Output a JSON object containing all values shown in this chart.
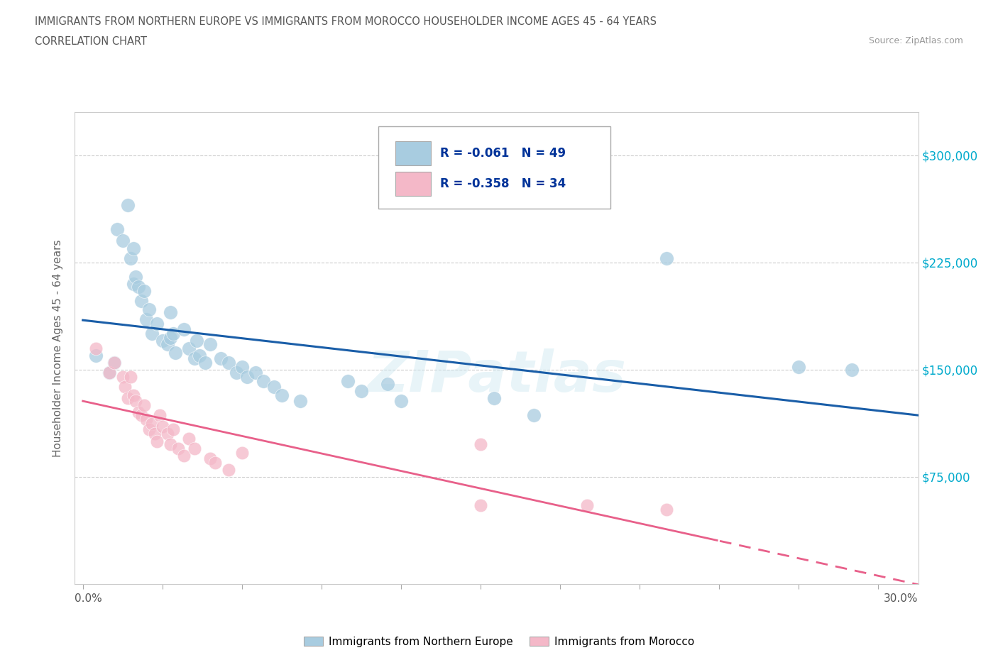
{
  "title_line1": "IMMIGRANTS FROM NORTHERN EUROPE VS IMMIGRANTS FROM MOROCCO HOUSEHOLDER INCOME AGES 45 - 64 YEARS",
  "title_line2": "CORRELATION CHART",
  "source_text": "Source: ZipAtlas.com",
  "xlabel_bottom_left": "0.0%",
  "xlabel_bottom_right": "30.0%",
  "ylabel": "Householder Income Ages 45 - 64 years",
  "watermark": "ZIPatlas",
  "legend_label1": "Immigrants from Northern Europe",
  "legend_label2": "Immigrants from Morocco",
  "r1": "-0.061",
  "n1": "49",
  "r2": "-0.358",
  "n2": "34",
  "blue_color": "#a8cce0",
  "blue_line_color": "#1a5ea8",
  "pink_color": "#f4b8c8",
  "pink_line_color": "#e8608a",
  "blue_scatter": [
    [
      0.005,
      160000
    ],
    [
      0.01,
      148000
    ],
    [
      0.012,
      155000
    ],
    [
      0.013,
      248000
    ],
    [
      0.015,
      240000
    ],
    [
      0.017,
      265000
    ],
    [
      0.018,
      228000
    ],
    [
      0.019,
      235000
    ],
    [
      0.019,
      210000
    ],
    [
      0.02,
      215000
    ],
    [
      0.021,
      208000
    ],
    [
      0.022,
      198000
    ],
    [
      0.023,
      205000
    ],
    [
      0.024,
      185000
    ],
    [
      0.025,
      192000
    ],
    [
      0.026,
      175000
    ],
    [
      0.028,
      182000
    ],
    [
      0.03,
      170000
    ],
    [
      0.032,
      168000
    ],
    [
      0.033,
      190000
    ],
    [
      0.033,
      172000
    ],
    [
      0.034,
      175000
    ],
    [
      0.035,
      162000
    ],
    [
      0.038,
      178000
    ],
    [
      0.04,
      165000
    ],
    [
      0.042,
      158000
    ],
    [
      0.043,
      170000
    ],
    [
      0.044,
      160000
    ],
    [
      0.046,
      155000
    ],
    [
      0.048,
      168000
    ],
    [
      0.052,
      158000
    ],
    [
      0.055,
      155000
    ],
    [
      0.058,
      148000
    ],
    [
      0.06,
      152000
    ],
    [
      0.062,
      145000
    ],
    [
      0.065,
      148000
    ],
    [
      0.068,
      142000
    ],
    [
      0.072,
      138000
    ],
    [
      0.075,
      132000
    ],
    [
      0.082,
      128000
    ],
    [
      0.1,
      142000
    ],
    [
      0.105,
      135000
    ],
    [
      0.115,
      140000
    ],
    [
      0.12,
      128000
    ],
    [
      0.155,
      130000
    ],
    [
      0.17,
      118000
    ],
    [
      0.22,
      228000
    ],
    [
      0.27,
      152000
    ],
    [
      0.29,
      150000
    ]
  ],
  "pink_scatter": [
    [
      0.005,
      165000
    ],
    [
      0.01,
      148000
    ],
    [
      0.012,
      155000
    ],
    [
      0.015,
      145000
    ],
    [
      0.016,
      138000
    ],
    [
      0.017,
      130000
    ],
    [
      0.018,
      145000
    ],
    [
      0.019,
      132000
    ],
    [
      0.02,
      128000
    ],
    [
      0.021,
      120000
    ],
    [
      0.022,
      118000
    ],
    [
      0.023,
      125000
    ],
    [
      0.024,
      115000
    ],
    [
      0.025,
      108000
    ],
    [
      0.026,
      112000
    ],
    [
      0.027,
      105000
    ],
    [
      0.028,
      100000
    ],
    [
      0.029,
      118000
    ],
    [
      0.03,
      110000
    ],
    [
      0.032,
      105000
    ],
    [
      0.033,
      98000
    ],
    [
      0.034,
      108000
    ],
    [
      0.036,
      95000
    ],
    [
      0.038,
      90000
    ],
    [
      0.04,
      102000
    ],
    [
      0.042,
      95000
    ],
    [
      0.048,
      88000
    ],
    [
      0.05,
      85000
    ],
    [
      0.055,
      80000
    ],
    [
      0.06,
      92000
    ],
    [
      0.15,
      98000
    ],
    [
      0.15,
      55000
    ],
    [
      0.19,
      55000
    ],
    [
      0.22,
      52000
    ]
  ],
  "ytick_labels": [
    "$75,000",
    "$150,000",
    "$225,000",
    "$300,000"
  ],
  "ytick_values": [
    75000,
    150000,
    225000,
    300000
  ],
  "ymin": 0,
  "ymax": 330000,
  "xmin": -0.003,
  "xmax": 0.315,
  "grid_color": "#cccccc",
  "background_color": "#ffffff",
  "fig_bg_color": "#ffffff"
}
